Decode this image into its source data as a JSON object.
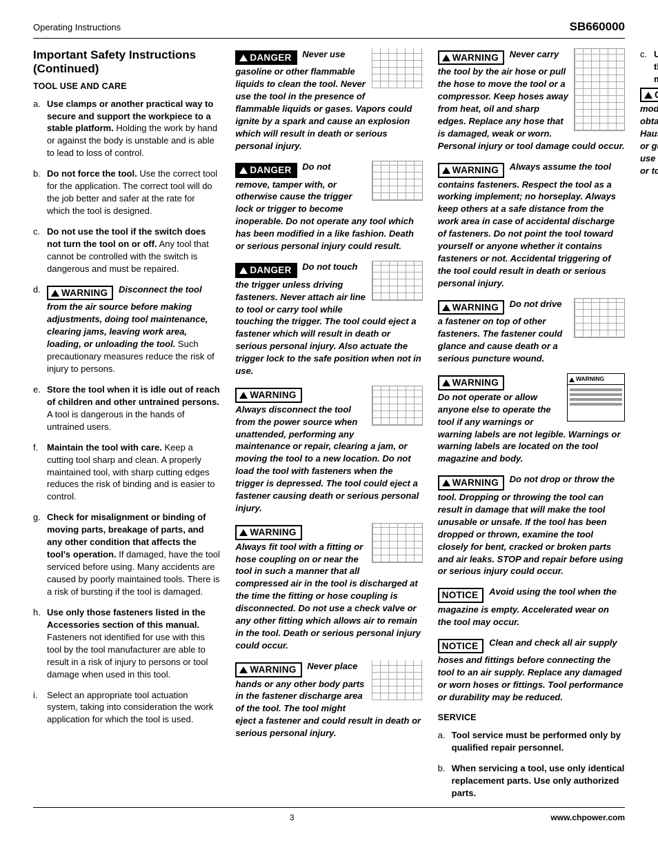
{
  "header": {
    "left": "Operating Instructions",
    "right": "SB660000"
  },
  "section": {
    "title": "Important Safety Instructions (Continued)",
    "sub1": "TOOL USE AND CARE",
    "sub2": "SERVICE"
  },
  "labels": {
    "danger": "DANGER",
    "warning": "WARNING",
    "caution": "CAUTION",
    "notice": "NOTICE"
  },
  "tool_use": {
    "a_b": "Use clamps or another practical way to secure and support the workpiece to a stable platform.",
    "a_r": " Holding the work by hand or against the body is unstable and is able to lead to loss of control.",
    "b_b": "Do not force the tool.",
    "b_r": " Use the correct tool for the application. The correct tool will do the job better and safer at the rate for which the tool is designed.",
    "c_b": "Do not use the tool if the switch does not turn the tool on or off.",
    "c_r": " Any tool that cannot be controlled with the switch is dangerous and must be repaired.",
    "d_bi": "Disconnect the tool from the air source before making adjustments, doing tool maintenance, clearing jams, leaving work area, loading, or unloading the tool.",
    "d_r": " Such precautionary measures reduce the risk of injury to persons.",
    "e_b": "Store the tool when it is idle out of reach of children and other untrained persons.",
    "e_r": " A tool is dangerous in the hands of untrained users.",
    "f_b": "Maintain the tool with care.",
    "f_r": " Keep a cutting tool sharp and clean. A properly maintained tool, with sharp cutting edges reduces the risk of binding and is easier to control.",
    "g_b": "Check for misalignment or binding of moving parts, breakage of parts, and any other condition that affects the tool's operation.",
    "g_r": " If damaged, have the tool serviced before using. Many accidents are caused by poorly maintained tools. There is a risk of bursting if the tool is damaged.",
    "h_b": "Use only those fasteners listed in the Accessories section of this manual.",
    "h_r": " Fasteners not identified for use with this tool by the tool manufacturer are able to result in a risk of injury to persons or tool damage when used in this tool.",
    "i_r": "Select an appropriate tool actuation system, taking into consideration the work application for which the tool is used."
  },
  "callouts": {
    "d1": "Never use gasoline or other flammable liquids to clean the tool. Never use the tool in the presence of flammable liquids or gases. Vapors could ignite by a spark and cause an explosion which will result in death or serious personal injury.",
    "d2": "Do not remove, tamper with, or otherwise cause the trigger lock or trigger to become inoperable. Do not operate any tool which has been modified in a like fashion. Death or serious personal injury could result.",
    "d3": "Do not touch the trigger unless driving fasteners. Never attach air line to tool or carry tool while touching the trigger. The tool could eject a fastener which will result in death or serious personal injury. Also actuate the trigger lock to the safe position when not in use.",
    "w1": "Always disconnect the tool from the power source when unattended, performing any maintenance or repair, clearing a jam, or moving the tool to a new location. Do not load the tool with fasteners when the trigger is depressed. The tool could eject a fastener causing death or serious personal injury.",
    "w2": "Always fit tool with a fitting or hose coupling on or near the tool in such a manner that all compressed air in the tool is discharged at the time the fitting or hose coupling is disconnected. Do not use a check valve or any other fitting which allows air to remain in the tool. Death or serious personal injury could occur.",
    "w3": "Never place hands or any other body parts in the fastener discharge area of the tool. The tool might eject a fastener and could result in death or serious personal injury.",
    "w4": "Never carry the tool by the air hose or pull the hose to move the tool or a compressor. Keep hoses away from heat, oil and sharp edges. Replace any hose that is damaged, weak or worn. Personal injury or tool damage could occur.",
    "w5": "Always assume the tool contains fasteners. Respect the tool as a working implement; no horseplay. Always keep others at a safe distance from the work area in case of accidental discharge of fasteners. Do not point the tool toward yourself or anyone whether it contains fasteners or not. Accidental triggering of the tool could result in death or serious personal injury.",
    "w6": "Do not drive a fastener on top of other fasteners. The fastener could glance and cause death or a serious puncture wound.",
    "w7": "Do not operate or allow anyone else to operate the tool if any warnings or warning labels are not legible. Warnings or warning labels are located on the tool magazine and body.",
    "w8": "Do not drop or throw the tool. Dropping or throwing the tool can result in damage that will make the tool unusable or unsafe. If the tool has been dropped or thrown, examine the tool closely for bent, cracked or broken parts and air leaks. STOP and repair before using or serious injury could occur.",
    "n1": "Avoid using the tool when the magazine is empty. Accelerated wear on the tool may occur.",
    "n2": "Clean and check all air supply hoses and fittings before connecting the tool to an air supply. Replace any damaged or worn hoses or fittings. Tool performance or durability may be reduced.",
    "c1": "Do not make any modifications to the tool without first obtaining written approval from Campbell Hausfeld. Do not use the tool if any shields or guards are removed or altered. Do not use the tool as a hammer. Personal injury or tool damage may occur."
  },
  "service": {
    "a": "Tool service must be performed only by qualified repair personnel.",
    "b": "When servicing a tool, use only identical replacement parts. Use only authorized parts.",
    "c": "Use only the lubricants supplied with the tool or specified by the manufacturer."
  },
  "warning_box_label": "WARNING",
  "footer": {
    "page": "3",
    "url": "www.chpower.com"
  }
}
